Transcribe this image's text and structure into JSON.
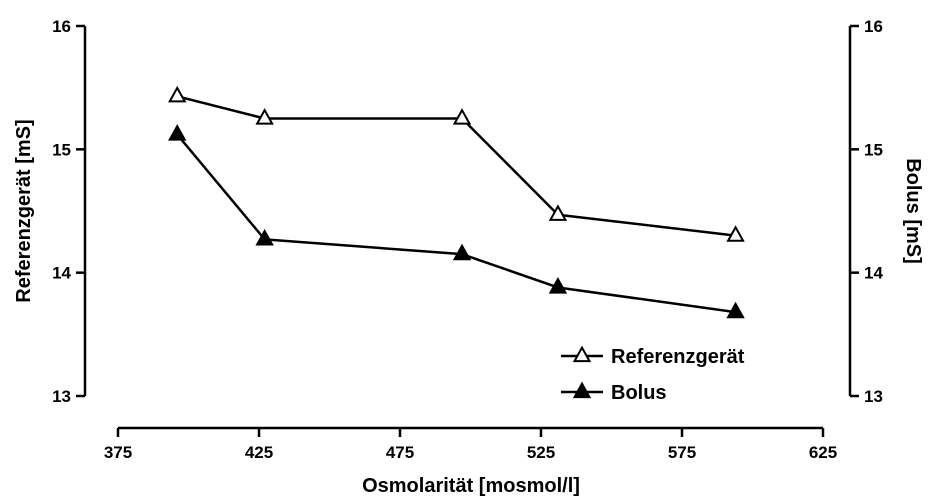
{
  "chart_data": {
    "type": "line",
    "title": "",
    "xlabel": "Osmolarität [mosmol/l]",
    "ylabel_left": "Referenzgerät [mS]",
    "ylabel_right": "Bolus [mS]",
    "xlim": [
      375,
      625
    ],
    "ylim_left": [
      13,
      16
    ],
    "ylim_right": [
      13,
      16
    ],
    "x_ticks": [
      "375",
      "425",
      "475",
      "525",
      "575",
      "625"
    ],
    "y_ticks_left": [
      "13",
      "14",
      "15",
      "16"
    ],
    "y_ticks_right": [
      "13",
      "14",
      "15",
      "16"
    ],
    "grid": false,
    "legend_position": "bottom-right",
    "series": [
      {
        "name": "Referenzgerät",
        "marker": "open-triangle",
        "axis": "left",
        "x": [
          396,
          427,
          497,
          531,
          594
        ],
        "y": [
          15.43,
          15.25,
          15.25,
          14.47,
          14.3
        ]
      },
      {
        "name": "Bolus",
        "marker": "filled-triangle",
        "axis": "right",
        "x": [
          396,
          427,
          497,
          531,
          594
        ],
        "y": [
          15.12,
          14.27,
          14.15,
          13.88,
          13.68
        ]
      }
    ]
  }
}
